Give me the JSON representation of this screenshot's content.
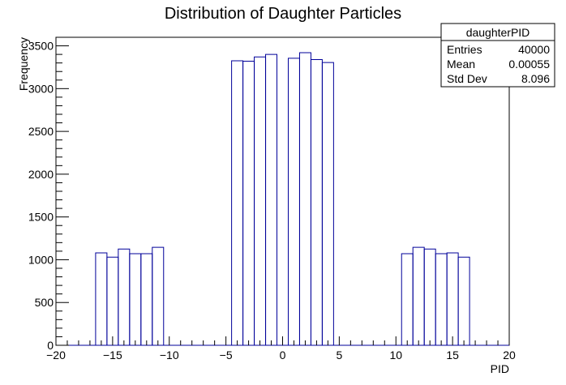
{
  "chart_data": {
    "type": "bar",
    "title": "Distribution of Daughter Particles",
    "xlabel": "PID",
    "ylabel": "Frequency",
    "xlim": [
      -20,
      20
    ],
    "ylim": [
      0,
      3600
    ],
    "bin_width": 1,
    "x_ticks": [
      -20,
      -15,
      -10,
      -5,
      0,
      5,
      10,
      15,
      20
    ],
    "x_tick_labels": [
      "−20",
      "−15",
      "−10",
      "−5",
      "0",
      "5",
      "10",
      "15",
      "20"
    ],
    "y_ticks": [
      0,
      500,
      1000,
      1500,
      2000,
      2500,
      3000,
      3500
    ],
    "y_tick_labels": [
      "0",
      "500",
      "1000",
      "1500",
      "2000",
      "2500",
      "3000",
      "3500"
    ],
    "bins": [
      {
        "x": -16,
        "value": 1080
      },
      {
        "x": -15,
        "value": 1030
      },
      {
        "x": -14,
        "value": 1125
      },
      {
        "x": -13,
        "value": 1070
      },
      {
        "x": -12,
        "value": 1070
      },
      {
        "x": -11,
        "value": 1145
      },
      {
        "x": -4,
        "value": 3325
      },
      {
        "x": -3,
        "value": 3320
      },
      {
        "x": -2,
        "value": 3370
      },
      {
        "x": -1,
        "value": 3400
      },
      {
        "x": 1,
        "value": 3355
      },
      {
        "x": 2,
        "value": 3420
      },
      {
        "x": 3,
        "value": 3340
      },
      {
        "x": 4,
        "value": 3305
      },
      {
        "x": 11,
        "value": 1070
      },
      {
        "x": 12,
        "value": 1145
      },
      {
        "x": 13,
        "value": 1125
      },
      {
        "x": 14,
        "value": 1070
      },
      {
        "x": 15,
        "value": 1080
      },
      {
        "x": 16,
        "value": 1030
      }
    ],
    "stats_box": {
      "name": "daughterPID",
      "rows": [
        {
          "label": "Entries",
          "value": "40000"
        },
        {
          "label": "Mean",
          "value": "0.00055"
        },
        {
          "label": "Std Dev",
          "value": "8.096"
        }
      ]
    },
    "line_color": "#000099",
    "frame_color": "#000000",
    "grid": false
  }
}
